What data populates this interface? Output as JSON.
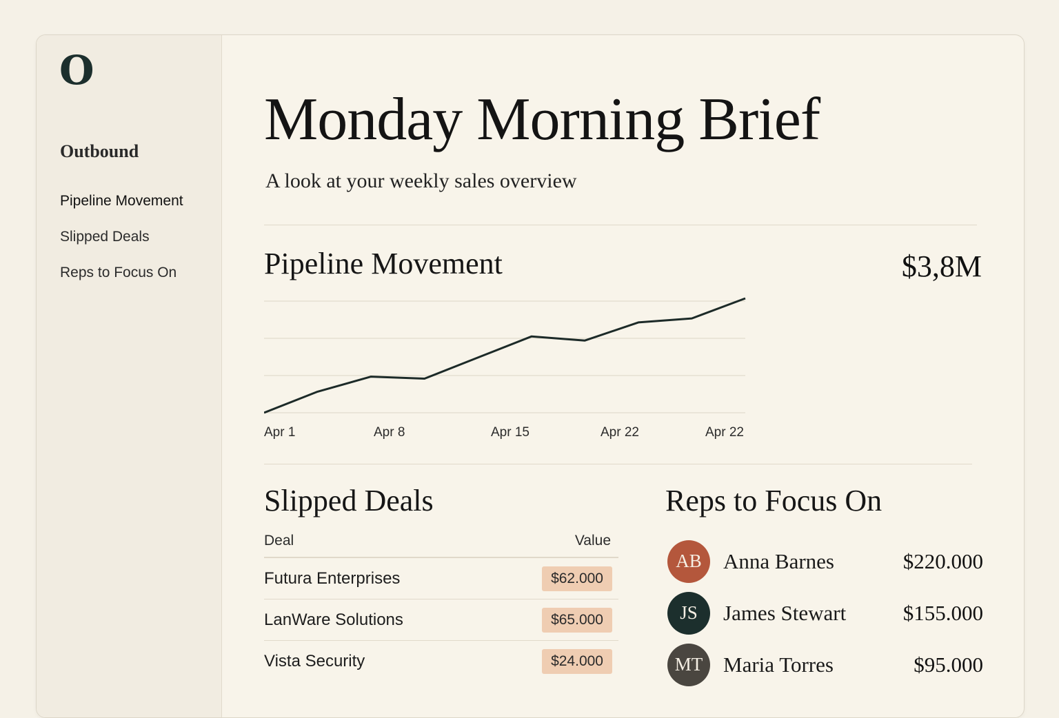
{
  "app": {
    "logo_letter": "O"
  },
  "sidebar": {
    "section_title": "Outbound",
    "items": [
      {
        "label": "Pipeline Movement",
        "active": true
      },
      {
        "label": "Slipped Deals",
        "active": false
      },
      {
        "label": "Reps to Focus On",
        "active": false
      }
    ]
  },
  "header": {
    "title": "Monday Morning Brief",
    "subtitle": "A look at your weekly sales overview"
  },
  "pipeline": {
    "title": "Pipeline Movement",
    "total": "$3,8M",
    "line_color": "#1c2a28"
  },
  "chart_data": {
    "type": "line",
    "x_tick_labels": [
      "Apr 1",
      "Apr 8",
      "Apr 15",
      "Apr 22",
      "Apr 22"
    ],
    "series": [
      {
        "values": [
          0.0,
          0.21,
          0.36,
          0.34,
          0.55,
          0.76,
          0.72,
          0.9,
          0.94,
          1.14
        ]
      }
    ],
    "ylim": [
      0,
      1.14
    ],
    "grid": true
  },
  "slipped_deals": {
    "title": "Slipped Deals",
    "columns": [
      "Deal",
      "Value"
    ],
    "rows": [
      {
        "deal": "Futura Enterprises",
        "value": "$62.000"
      },
      {
        "deal": "LanWare Solutions",
        "value": "$65.000"
      },
      {
        "deal": "Vista Security",
        "value": "$24.000"
      }
    ],
    "value_badge_color": "#efcdb2"
  },
  "reps": {
    "title": "Reps to Focus On",
    "items": [
      {
        "initials": "AB",
        "name": "Anna Barnes",
        "value": "$220.000",
        "color": "#b4573c"
      },
      {
        "initials": "JS",
        "name": "James Stewart",
        "value": "$155.000",
        "color": "#1c2f2d"
      },
      {
        "initials": "MT",
        "name": "Maria Torres",
        "value": "$95.000",
        "color": "#4a4640"
      }
    ]
  }
}
